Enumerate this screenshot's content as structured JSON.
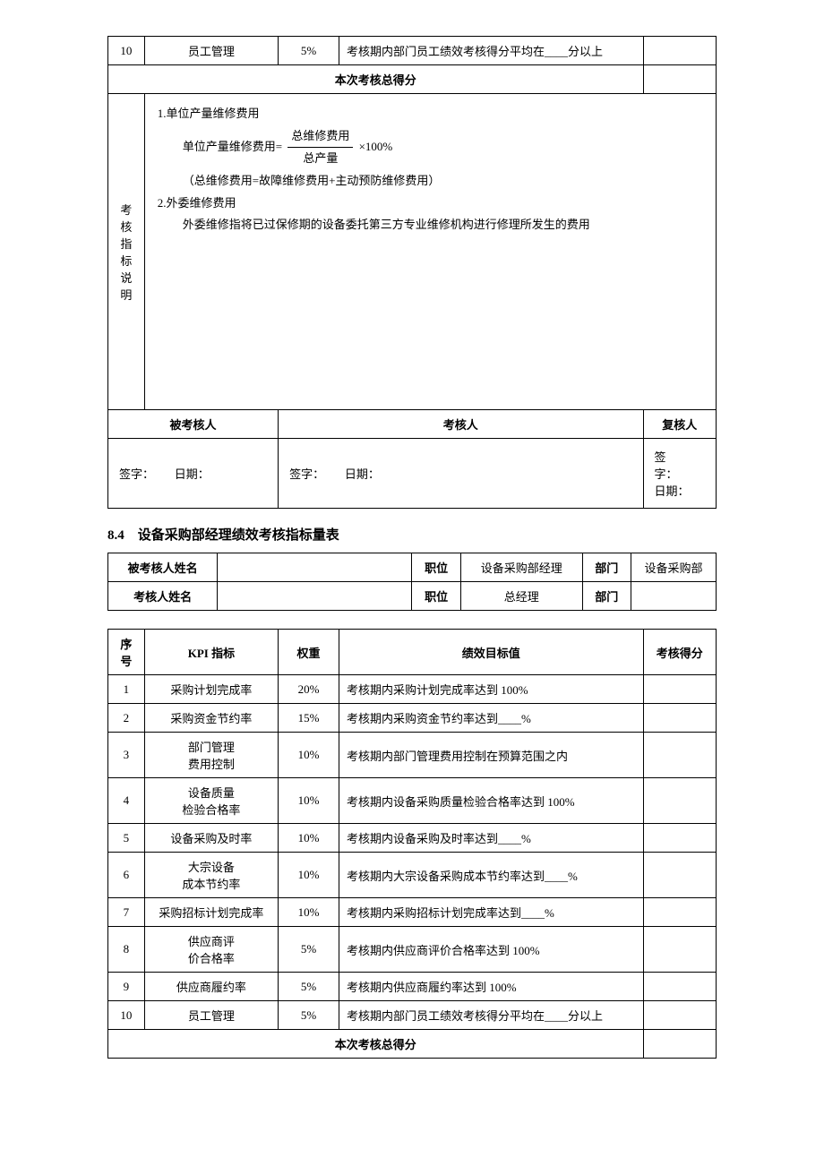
{
  "table1": {
    "row10": {
      "seq": "10",
      "kpi": "员工管理",
      "weight": "5%",
      "target": "考核期内部门员工绩效考核得分平均在____分以上"
    },
    "total_label": "本次考核总得分",
    "expl_label": "考核指标说明",
    "expl": {
      "line1": "1.单位产量维修费用",
      "line2_prefix": "单位产量维修费用=",
      "frac_num": "总维修费用",
      "frac_den": "总产量",
      "line2_suffix": "×100%",
      "line3": "（总维修费用=故障维修费用+主动预防维修费用）",
      "line4": "2.外委维修费用",
      "line5": "外委维修指将已过保修期的设备委托第三方专业维修机构进行修理所发生的费用"
    },
    "sig": {
      "h1": "被考核人",
      "h2": "考核人",
      "h3": "复核人",
      "s1": "签字：",
      "d1": "日期：",
      "s2": "签字：",
      "d2": "日期：",
      "s3": "签字：",
      "d3": "日期："
    }
  },
  "section": "8.4　设备采购部经理绩效考核指标量表",
  "info": {
    "r1": {
      "l1": "被考核人姓名",
      "v1": "",
      "l2": "职位",
      "v2": "设备采购部经理",
      "l3": "部门",
      "v3": "设备采购部"
    },
    "r2": {
      "l1": "考核人姓名",
      "v1": "",
      "l2": "职位",
      "v2": "总经理",
      "l3": "部门",
      "v3": ""
    }
  },
  "table2": {
    "headers": {
      "seq": "序号",
      "kpi": "KPI 指标",
      "weight": "权重",
      "target": "绩效目标值",
      "score": "考核得分"
    },
    "rows": [
      {
        "seq": "1",
        "kpi": "采购计划完成率",
        "weight": "20%",
        "target": "考核期内采购计划完成率达到 100%"
      },
      {
        "seq": "2",
        "kpi": "采购资金节约率",
        "weight": "15%",
        "target": "考核期内采购资金节约率达到____%"
      },
      {
        "seq": "3",
        "kpi": "部门管理\n费用控制",
        "weight": "10%",
        "target": "考核期内部门管理费用控制在预算范围之内"
      },
      {
        "seq": "4",
        "kpi": "设备质量\n检验合格率",
        "weight": "10%",
        "target": "考核期内设备采购质量检验合格率达到 100%"
      },
      {
        "seq": "5",
        "kpi": "设备采购及时率",
        "weight": "10%",
        "target": "考核期内设备采购及时率达到____%"
      },
      {
        "seq": "6",
        "kpi": "大宗设备\n成本节约率",
        "weight": "10%",
        "target": "考核期内大宗设备采购成本节约率达到____%"
      },
      {
        "seq": "7",
        "kpi": "采购招标计划完成率",
        "weight": "10%",
        "target": "考核期内采购招标计划完成率达到____%"
      },
      {
        "seq": "8",
        "kpi": "供应商评\n价合格率",
        "weight": "5%",
        "target": "考核期内供应商评价合格率达到 100%"
      },
      {
        "seq": "9",
        "kpi": "供应商履约率",
        "weight": "5%",
        "target": "考核期内供应商履约率达到 100%"
      },
      {
        "seq": "10",
        "kpi": "员工管理",
        "weight": "5%",
        "target": "考核期内部门员工绩效考核得分平均在____分以上"
      }
    ],
    "total_label": "本次考核总得分"
  }
}
